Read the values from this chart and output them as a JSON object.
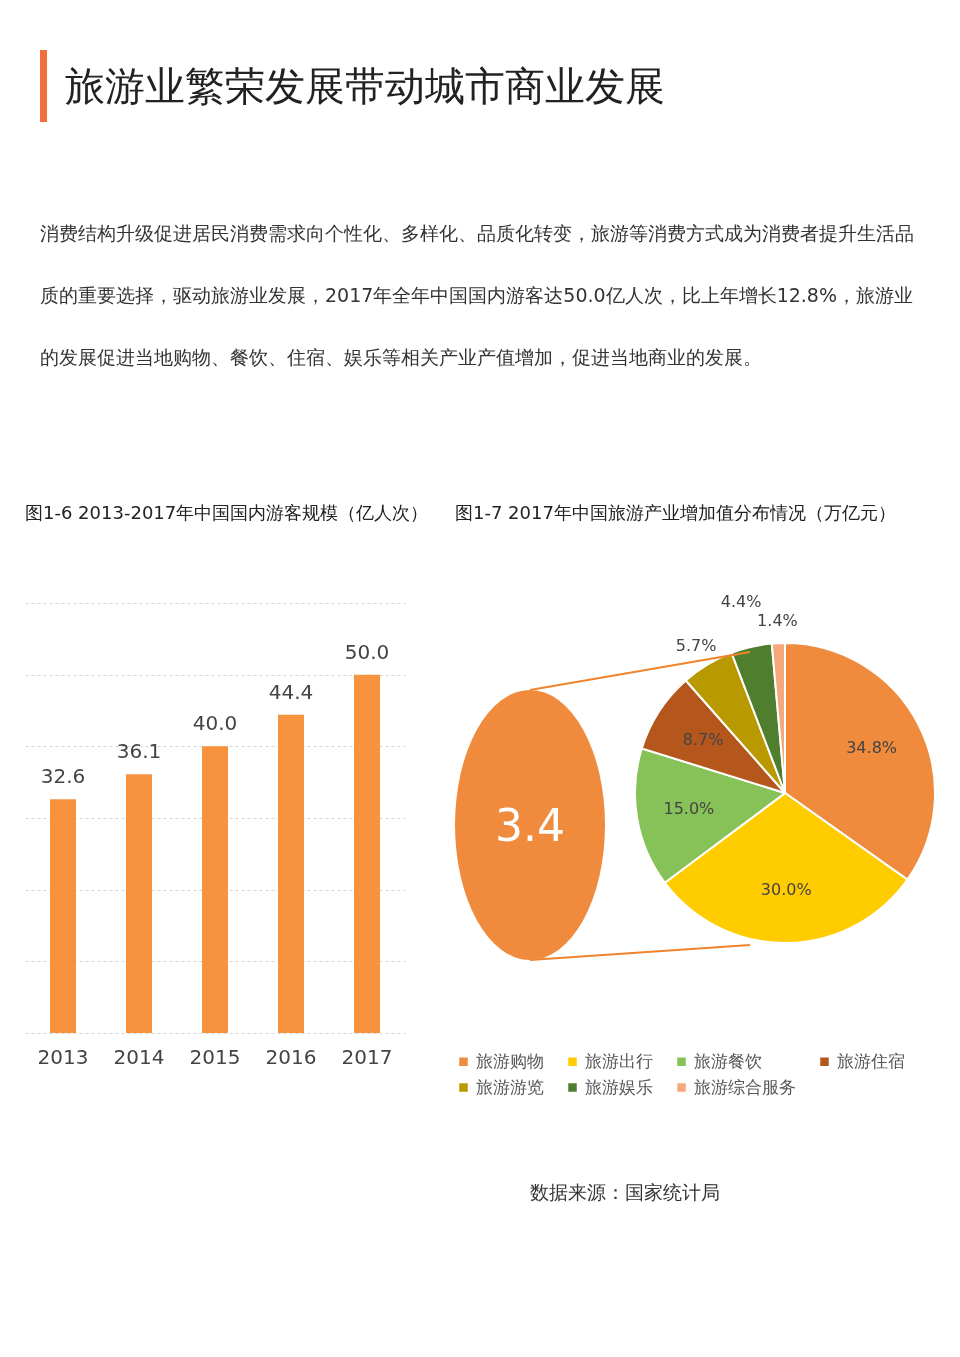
{
  "chart_data": [
    {
      "type": "other",
      "title": "旅游业繁荣发展带动城市商业发展",
      "subtitle": "消费结构升级促进居民消费需求向个性化、多样化、品质化转变，旅游等消费方式成为消费者提升生活品质的重要选择，驱动旅游业发展，2017年全年中国国内游客达50.0亿人次，比上年增长12.8%，旅游业的发展促进当地购物、餐饮、住宿、娱乐等相关产业产值增加，促进当地商业的发展。"
    },
    {
      "type": "bar",
      "title": "图1-6 2013-2017年中国国内游客规模（亿人次）",
      "categories": [
        "2013",
        "2014",
        "2015",
        "2016",
        "2017"
      ],
      "values": [
        32.6,
        36.1,
        40.0,
        44.4,
        50.0
      ],
      "value_labels": [
        "32.6",
        "36.1",
        "40.0",
        "44.4",
        "50.0"
      ],
      "color": "#f7923e",
      "ylim": [
        0,
        60
      ],
      "yticks": [
        {
          "value": 0,
          "label": null
        },
        {
          "value": 10,
          "label": null
        },
        {
          "value": 20,
          "label": null
        },
        {
          "value": 30,
          "label": null
        },
        {
          "value": 40,
          "label": null
        },
        {
          "value": 50,
          "label": null
        },
        {
          "value": 60,
          "label": null
        }
      ],
      "grid": "y",
      "tick_labels": "x"
    },
    {
      "type": "pie",
      "title": "图1-7 2017年中国旅游产业增加值分布情况（万亿元）",
      "categories": [
        "旅游购物",
        "旅游出行",
        "旅游餐饮",
        "旅游住宿",
        "旅游游览",
        "旅游娱乐",
        "旅游综合服务"
      ],
      "values": [
        34.8,
        30.0,
        15.0,
        8.7,
        5.7,
        4.4,
        1.4
      ],
      "value_labels": [
        "34.8%",
        "30.0%",
        "15.0%",
        "8.7%",
        "5.7%",
        "4.4%",
        "1.4%"
      ],
      "colors": [
        "#f08a3c",
        "#ffcc00",
        "#86c257",
        "#b5561c",
        "#b89a00",
        "#4f7f2e",
        "#f5a87c"
      ],
      "legend": "bottom",
      "annotations": [
        "3.4",
        "数据来源：国家统计局"
      ]
    }
  ]
}
